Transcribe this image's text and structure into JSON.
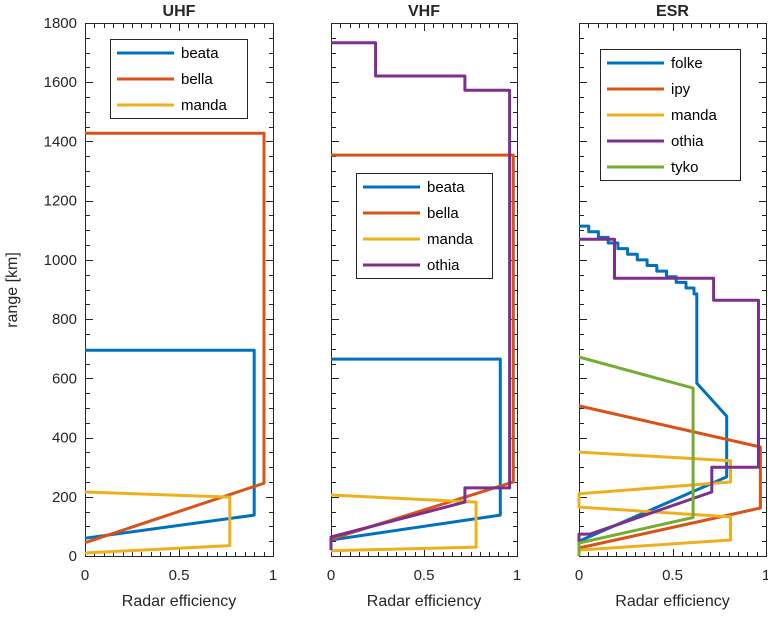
{
  "figure": {
    "ylabel": "range [km]",
    "xlabel": "Radar efficiency",
    "background": "#ffffff",
    "axis_color": "#262626"
  },
  "palette": {
    "blue": "#0072BD",
    "orange": "#D95319",
    "yellow": "#EDB120",
    "purple": "#7E2F8E",
    "green": "#77AC30"
  },
  "chart_data": [
    {
      "type": "line",
      "title": "UHF",
      "xlabel": "Radar efficiency",
      "ylabel": "range [km]",
      "xlim": [
        0,
        1
      ],
      "ylim": [
        0,
        1800
      ],
      "grid": false,
      "xticks": [
        0,
        0.5,
        1
      ],
      "xtick_labels": [
        "0",
        "0.5",
        "1"
      ],
      "yticks": [
        0,
        200,
        400,
        600,
        800,
        1000,
        1200,
        1400,
        1600,
        1800
      ],
      "ytick_labels": [
        "0",
        "200",
        "400",
        "600",
        "800",
        "1000",
        "1200",
        "1400",
        "1600",
        "1800"
      ],
      "x_minor_step": 0.05,
      "y_minor_step": 50,
      "legend": {
        "position": "top-left",
        "entries": [
          "beata",
          "bella",
          "manda"
        ]
      },
      "series": [
        {
          "name": "beata",
          "color": "#0072BD",
          "points": [
            [
              0,
              695
            ],
            [
              0.9,
              695
            ],
            [
              0.9,
              138
            ],
            [
              0,
              60
            ]
          ]
        },
        {
          "name": "bella",
          "color": "#D95319",
          "points": [
            [
              0,
              1428
            ],
            [
              0.952,
              1428
            ],
            [
              0.952,
              246
            ],
            [
              0,
              45
            ]
          ]
        },
        {
          "name": "manda",
          "color": "#EDB120",
          "points": [
            [
              0,
              216
            ],
            [
              0.77,
              199
            ],
            [
              0.77,
              35
            ],
            [
              0,
              10
            ]
          ]
        }
      ]
    },
    {
      "type": "line",
      "title": "VHF",
      "xlabel": "Radar efficiency",
      "ylabel": "range [km]",
      "xlim": [
        0,
        1
      ],
      "ylim": [
        0,
        1800
      ],
      "grid": false,
      "xticks": [
        0,
        0.5,
        1
      ],
      "xtick_labels": [
        "0",
        "0.5",
        "1"
      ],
      "yticks": [
        0,
        200,
        400,
        600,
        800,
        1000,
        1200,
        1400,
        1600,
        1800
      ],
      "x_minor_step": 0.05,
      "y_minor_step": 50,
      "legend": {
        "position": "middle-left",
        "entries": [
          "beata",
          "bella",
          "manda",
          "othia"
        ]
      },
      "series": [
        {
          "name": "beata",
          "color": "#0072BD",
          "points": [
            [
              0,
              665
            ],
            [
              0.91,
              665
            ],
            [
              0.91,
              138
            ],
            [
              0,
              54
            ]
          ]
        },
        {
          "name": "bella",
          "color": "#D95319",
          "points": [
            [
              0,
              1354
            ],
            [
              0.98,
              1354
            ],
            [
              0.98,
              250
            ],
            [
              0,
              57
            ]
          ]
        },
        {
          "name": "manda",
          "color": "#EDB120",
          "points": [
            [
              0,
              206
            ],
            [
              0.78,
              182
            ],
            [
              0.78,
              30
            ],
            [
              0,
              18
            ]
          ]
        },
        {
          "name": "othia",
          "color": "#7E2F8E",
          "points": [
            [
              0,
              1733
            ],
            [
              0.24,
              1733
            ],
            [
              0.24,
              1621
            ],
            [
              0.72,
              1621
            ],
            [
              0.72,
              1573
            ],
            [
              0.96,
              1573
            ],
            [
              0.96,
              230
            ],
            [
              0.72,
              230
            ],
            [
              0.72,
              182
            ],
            [
              0,
              64
            ],
            [
              0,
              20
            ]
          ]
        }
      ]
    },
    {
      "type": "line",
      "title": "ESR",
      "xlabel": "Radar efficiency",
      "ylabel": "range [km]",
      "xlim": [
        0,
        1
      ],
      "ylim": [
        0,
        1800
      ],
      "grid": false,
      "xticks": [
        0,
        0.5,
        1
      ],
      "xtick_labels": [
        "0",
        "0.5",
        "1"
      ],
      "yticks": [
        0,
        200,
        400,
        600,
        800,
        1000,
        1200,
        1400,
        1600,
        1800
      ],
      "x_minor_step": 0.05,
      "y_minor_step": 50,
      "legend": {
        "position": "top-middle",
        "entries": [
          "folke",
          "ipy",
          "manda",
          "othia",
          "tyko"
        ]
      },
      "series": [
        {
          "name": "folke",
          "color": "#0072BD",
          "points": [
            [
              0,
              1114
            ],
            [
              0.052,
              1114
            ],
            [
              0.052,
              1095
            ],
            [
              0.104,
              1095
            ],
            [
              0.104,
              1076
            ],
            [
              0.156,
              1076
            ],
            [
              0.156,
              1057
            ],
            [
              0.208,
              1057
            ],
            [
              0.208,
              1038
            ],
            [
              0.26,
              1038
            ],
            [
              0.26,
              1019
            ],
            [
              0.312,
              1019
            ],
            [
              0.312,
              1000
            ],
            [
              0.364,
              1000
            ],
            [
              0.364,
              981
            ],
            [
              0.416,
              981
            ],
            [
              0.416,
              962
            ],
            [
              0.468,
              962
            ],
            [
              0.468,
              943
            ],
            [
              0.52,
              943
            ],
            [
              0.52,
              924
            ],
            [
              0.572,
              924
            ],
            [
              0.572,
              905
            ],
            [
              0.615,
              905
            ],
            [
              0.615,
              885
            ],
            [
              0.63,
              885
            ],
            [
              0.63,
              584
            ],
            [
              0.79,
              472
            ],
            [
              0.79,
              267
            ],
            [
              0,
              50
            ]
          ]
        },
        {
          "name": "ipy",
          "color": "#D95319",
          "points": [
            [
              0,
              507
            ],
            [
              0.97,
              368
            ],
            [
              0.97,
              162
            ],
            [
              0,
              27
            ]
          ]
        },
        {
          "name": "manda",
          "color": "#EDB120",
          "points": [
            [
              0,
              351
            ],
            [
              0.81,
              322
            ],
            [
              0.81,
              250
            ],
            [
              0,
              210
            ],
            [
              0,
              165
            ],
            [
              0.81,
              132
            ],
            [
              0.81,
              54
            ],
            [
              0,
              20
            ]
          ]
        },
        {
          "name": "othia",
          "color": "#7E2F8E",
          "points": [
            [
              0,
              1070
            ],
            [
              0.19,
              1070
            ],
            [
              0.19,
              938
            ],
            [
              0.72,
              938
            ],
            [
              0.72,
              864
            ],
            [
              0.96,
              864
            ],
            [
              0.96,
              300
            ],
            [
              0.71,
              300
            ],
            [
              0.71,
              216
            ],
            [
              0.06,
              74
            ],
            [
              0,
              74
            ],
            [
              0,
              30
            ]
          ]
        },
        {
          "name": "tyko",
          "color": "#77AC30",
          "points": [
            [
              0,
              672
            ],
            [
              0.61,
              567
            ],
            [
              0.61,
              130
            ],
            [
              0,
              44
            ],
            [
              0,
              0
            ]
          ]
        }
      ]
    }
  ]
}
